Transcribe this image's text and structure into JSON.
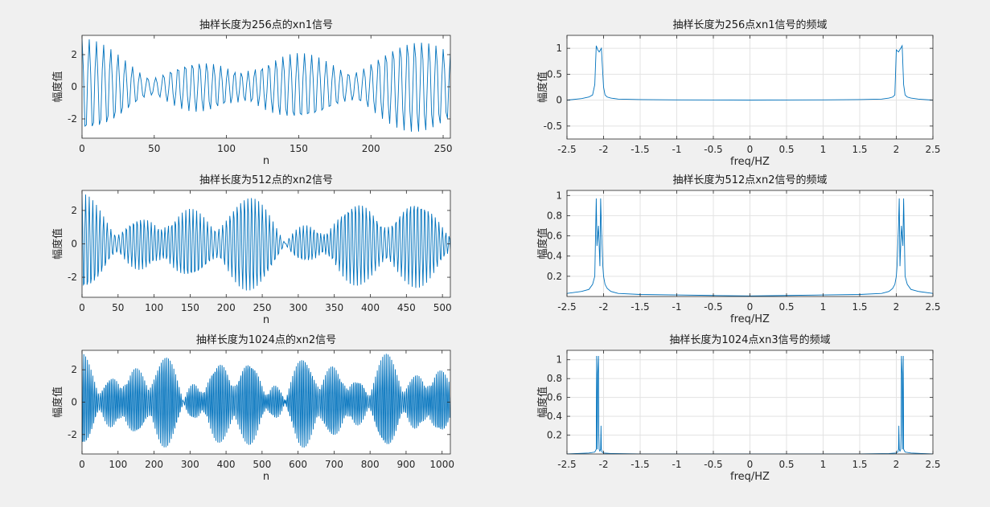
{
  "window": {
    "background": "#f0f0f0",
    "line_color": "#0072bd"
  },
  "chart_data": [
    {
      "id": "time-256",
      "type": "line",
      "title": "抽样长度为256点的xn1信号",
      "xlabel": "n",
      "ylabel": "幅度值",
      "xlim": [
        0,
        255
      ],
      "ylim": [
        -3.2,
        3.2
      ],
      "xticks": [
        0,
        50,
        100,
        150,
        200,
        250
      ],
      "yticks": [
        -2,
        0,
        2
      ],
      "grid": false,
      "series": [
        {
          "signal": {
            "n": 256,
            "components": [
              {
                "amp": 1.0,
                "cycles_per_sample": 0.2
              },
              {
                "amp": 1.0,
                "cycles_per_sample": 0.2083
              },
              {
                "amp": 1.0,
                "cycles_per_sample": 0.1953
              }
            ]
          }
        }
      ]
    },
    {
      "id": "freq-256",
      "type": "line",
      "title": "抽样长度为256点xn1信号的频域",
      "xlabel": "freq/HZ",
      "ylabel": "幅度值",
      "xlim": [
        -2.5,
        2.5
      ],
      "ylim": [
        -0.75,
        1.25
      ],
      "xticks": [
        -2.5,
        -2,
        -1.5,
        -1,
        -0.5,
        0,
        0.5,
        1,
        1.5,
        2,
        2.5
      ],
      "yticks": [
        -0.5,
        0,
        0.5,
        1
      ],
      "grid": true,
      "series": [
        {
          "x": [
            -2.5,
            -2.3,
            -2.2,
            -2.15,
            -2.12,
            -2.1,
            -2.08,
            -2.06,
            -2.03,
            -2.0,
            -1.98,
            -1.95,
            -1.9,
            -1.8,
            -1.5,
            -1.0,
            -0.5,
            0,
            0.5,
            1.0,
            1.5,
            1.8,
            1.9,
            1.95,
            1.98,
            2.0,
            2.03,
            2.06,
            2.08,
            2.1,
            2.12,
            2.15,
            2.2,
            2.3,
            2.5
          ],
          "y": [
            0.0,
            0.03,
            0.06,
            0.1,
            0.3,
            1.05,
            0.97,
            0.93,
            1.0,
            0.25,
            0.1,
            0.06,
            0.04,
            0.02,
            0.01,
            0.005,
            0.003,
            0.0,
            0.003,
            0.005,
            0.01,
            0.02,
            0.04,
            0.06,
            0.1,
            0.97,
            0.93,
            1.0,
            1.05,
            0.3,
            0.1,
            0.06,
            0.04,
            0.02,
            0.0
          ]
        }
      ]
    },
    {
      "id": "time-512",
      "type": "line",
      "title": "抽样长度为512点的xn2信号",
      "xlabel": "n",
      "ylabel": "幅度值",
      "xlim": [
        0,
        511
      ],
      "ylim": [
        -3.2,
        3.2
      ],
      "xticks": [
        0,
        50,
        100,
        150,
        200,
        250,
        300,
        350,
        400,
        450,
        500
      ],
      "yticks": [
        -2,
        0,
        2
      ],
      "grid": false,
      "series": [
        {
          "signal": {
            "n": 512,
            "components": [
              {
                "amp": 1.0,
                "cycles_per_sample": 0.2
              },
              {
                "amp": 1.0,
                "cycles_per_sample": 0.2083
              },
              {
                "amp": 1.0,
                "cycles_per_sample": 0.1953
              }
            ]
          }
        }
      ]
    },
    {
      "id": "freq-512",
      "type": "line",
      "title": "抽样长度为512点xn2信号的频域",
      "xlabel": "freq/HZ",
      "ylabel": "幅度值",
      "xlim": [
        -2.5,
        2.5
      ],
      "ylim": [
        0,
        1.05
      ],
      "xticks": [
        -2.5,
        -2,
        -1.5,
        -1,
        -0.5,
        0,
        0.5,
        1,
        1.5,
        2,
        2.5
      ],
      "yticks": [
        0.2,
        0.4,
        0.6,
        0.8,
        1
      ],
      "grid": true,
      "series": [
        {
          "x": [
            -2.5,
            -2.3,
            -2.2,
            -2.15,
            -2.12,
            -2.1,
            -2.09,
            -2.07,
            -2.05,
            -2.04,
            -2.03,
            -2.01,
            -2.0,
            -1.98,
            -1.95,
            -1.9,
            -1.8,
            -1.5,
            -1.0,
            -0.5,
            0,
            0.5,
            1.0,
            1.5,
            1.8,
            1.9,
            1.95,
            1.98,
            2.0,
            2.01,
            2.03,
            2.04,
            2.05,
            2.07,
            2.09,
            2.1,
            2.12,
            2.15,
            2.2,
            2.3,
            2.5
          ],
          "y": [
            0.03,
            0.05,
            0.07,
            0.12,
            0.2,
            0.97,
            0.5,
            0.7,
            0.3,
            0.97,
            0.7,
            0.3,
            0.2,
            0.12,
            0.08,
            0.05,
            0.03,
            0.02,
            0.015,
            0.01,
            0.005,
            0.01,
            0.015,
            0.02,
            0.03,
            0.05,
            0.08,
            0.12,
            0.2,
            0.3,
            0.7,
            0.97,
            0.3,
            0.7,
            0.5,
            0.97,
            0.2,
            0.12,
            0.07,
            0.05,
            0.03
          ]
        }
      ]
    },
    {
      "id": "time-1024",
      "type": "line",
      "title": "抽样长度为1024点的xn2信号",
      "xlabel": "n",
      "ylabel": "幅度值",
      "xlim": [
        0,
        1023
      ],
      "ylim": [
        -3.2,
        3.2
      ],
      "xticks": [
        0,
        100,
        200,
        300,
        400,
        500,
        600,
        700,
        800,
        900,
        1000
      ],
      "yticks": [
        -2,
        0,
        2
      ],
      "grid": false,
      "series": [
        {
          "signal": {
            "n": 1024,
            "components": [
              {
                "amp": 1.0,
                "cycles_per_sample": 0.2
              },
              {
                "amp": 1.0,
                "cycles_per_sample": 0.2083
              },
              {
                "amp": 1.0,
                "cycles_per_sample": 0.1953
              }
            ]
          }
        }
      ]
    },
    {
      "id": "freq-1024",
      "type": "line",
      "title": "抽样长度为1024点xn3信号的频域",
      "xlabel": "freq/HZ",
      "ylabel": "幅度值",
      "xlim": [
        -2.5,
        2.5
      ],
      "ylim": [
        0,
        1.1
      ],
      "xticks": [
        -2.5,
        -2,
        -1.5,
        -1,
        -0.5,
        0,
        0.5,
        1,
        1.5,
        2,
        2.5
      ],
      "yticks": [
        0.2,
        0.4,
        0.6,
        0.8,
        1
      ],
      "grid": true,
      "series": [
        {
          "x": [
            -2.5,
            -2.2,
            -2.12,
            -2.1,
            -2.095,
            -2.085,
            -2.08,
            -2.07,
            -2.065,
            -2.06,
            -2.05,
            -2.04,
            -2.035,
            -2.03,
            -2.02,
            -2.0,
            -1.9,
            -1.5,
            -1.0,
            -0.5,
            0,
            0.5,
            1.0,
            1.5,
            1.9,
            2.0,
            2.02,
            2.03,
            2.035,
            2.04,
            2.05,
            2.06,
            2.065,
            2.07,
            2.08,
            2.085,
            2.095,
            2.1,
            2.12,
            2.2,
            2.5
          ],
          "y": [
            0.0,
            0.01,
            0.02,
            0.05,
            1.04,
            0.05,
            0.85,
            1.04,
            0.2,
            0.05,
            0.03,
            0.05,
            0.3,
            0.05,
            0.02,
            0.01,
            0.005,
            0.0,
            0.0,
            0.0,
            0.0,
            0.0,
            0.0,
            0.0,
            0.005,
            0.01,
            0.02,
            0.05,
            0.3,
            0.05,
            0.03,
            0.05,
            0.2,
            1.04,
            0.85,
            0.05,
            1.04,
            0.05,
            0.02,
            0.01,
            0.0
          ]
        }
      ]
    }
  ]
}
